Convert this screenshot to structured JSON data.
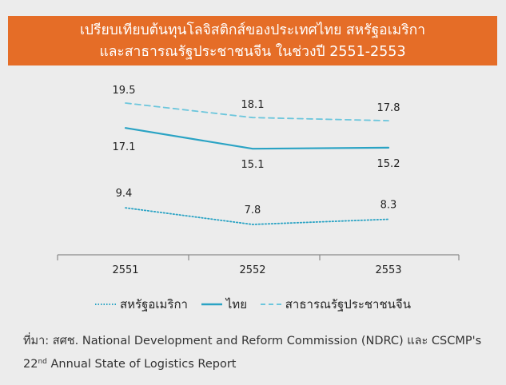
{
  "title": {
    "line1": "เปรียบเทียบต้นทุนโลจิสติกส์ของประเทศไทย สหรัฐอเมริกา",
    "line2": "และสาธารณรัฐประชาชนจีน ในช่วงปี 2551-2553"
  },
  "colors": {
    "banner": "#e56d27",
    "usa": "#2aa3c4",
    "thailand": "#2aa3c4",
    "china": "#6cc6dc"
  },
  "chart_data": {
    "type": "line",
    "categories": [
      "2551",
      "2552",
      "2553"
    ],
    "series": [
      {
        "name": "สหรัฐอเมริกา",
        "values": [
          9.4,
          7.8,
          8.3
        ],
        "style": "dotted"
      },
      {
        "name": "ไทย",
        "values": [
          17.1,
          15.1,
          15.2
        ],
        "style": "solid"
      },
      {
        "name": "สาธารณรัฐประชาชนจีน",
        "values": [
          19.5,
          18.1,
          17.8
        ],
        "style": "dashed"
      }
    ],
    "data_labels": true,
    "legend": "bottom",
    "grid": false
  },
  "source": {
    "line1": "ที่มา: สศช. National Development and Reform Commission (NDRC) และ CSCMP's",
    "line2_prefix": "22",
    "line2_sup": "nd",
    "line2_rest": " Annual State of Logistics Report"
  }
}
